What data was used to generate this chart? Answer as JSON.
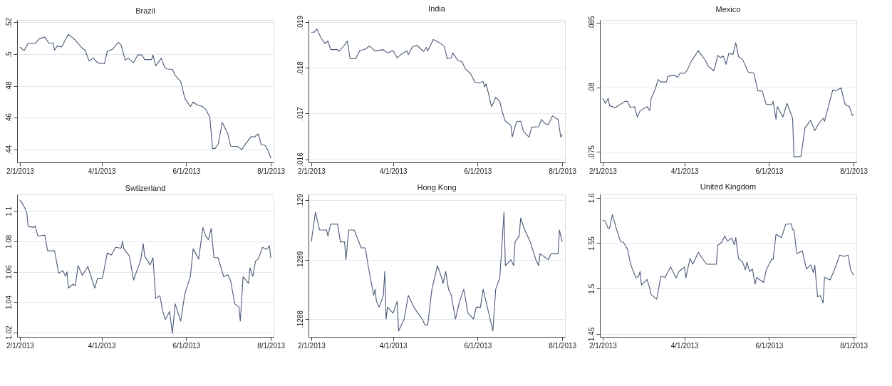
{
  "chart_data": [
    {
      "type": "line",
      "title": "Brazil",
      "color": "#4a5a78",
      "grid": "y",
      "xlim": [
        "2013-01-30",
        "2013-08-03"
      ],
      "xticks": [
        {
          "value": "2013-02-01",
          "label": "2/1/2013"
        },
        {
          "value": "2013-04-01",
          "label": "4/1/2013"
        },
        {
          "value": "2013-06-01",
          "label": "6/1/2013"
        },
        {
          "value": "2013-08-01",
          "label": "8/1/2013"
        }
      ],
      "ylim": [
        0.432,
        0.5215
      ],
      "yticks": [
        {
          "value": 0.44,
          "label": ".44"
        },
        {
          "value": 0.46,
          "label": ".46"
        },
        {
          "value": 0.48,
          "label": ".48"
        },
        {
          "value": 0.5,
          "label": ".5"
        },
        {
          "value": 0.52,
          "label": ".52"
        }
      ],
      "x": [
        "2013-02-01",
        "2013-02-04",
        "2013-02-07",
        "2013-02-12",
        "2013-02-15",
        "2013-02-19",
        "2013-02-22",
        "2013-02-25",
        "2013-02-26",
        "2013-02-28",
        "2013-03-03",
        "2013-03-08",
        "2013-03-12",
        "2013-03-18",
        "2013-03-20",
        "2013-03-23",
        "2013-03-26",
        "2013-03-29",
        "2013-04-03",
        "2013-04-05",
        "2013-04-09",
        "2013-04-13",
        "2013-04-15",
        "2013-04-18",
        "2013-04-20",
        "2013-04-24",
        "2013-04-27",
        "2013-04-30",
        "2013-05-02",
        "2013-05-07",
        "2013-05-08",
        "2013-05-10",
        "2013-05-14",
        "2013-05-16",
        "2013-05-18",
        "2013-05-22",
        "2013-05-24",
        "2013-05-28",
        "2013-05-31",
        "2013-06-04",
        "2013-06-06",
        "2013-06-09",
        "2013-06-13",
        "2013-06-15",
        "2013-06-18",
        "2013-06-20",
        "2013-06-22",
        "2013-06-24",
        "2013-06-27",
        "2013-07-01",
        "2013-07-03",
        "2013-07-08",
        "2013-07-11",
        "2013-07-14",
        "2013-07-18",
        "2013-07-20",
        "2013-07-23",
        "2013-07-25",
        "2013-07-28",
        "2013-07-30",
        "2013-08-01"
      ],
      "values": [
        0.5045,
        0.5022,
        0.5067,
        0.5067,
        0.5097,
        0.5107,
        0.5067,
        0.5071,
        0.5025,
        0.5051,
        0.5045,
        0.5124,
        0.5097,
        0.5038,
        0.5025,
        0.4957,
        0.4975,
        0.4946,
        0.4939,
        0.5018,
        0.5032,
        0.5074,
        0.5058,
        0.4962,
        0.4975,
        0.4946,
        0.4995,
        0.4995,
        0.4966,
        0.4966,
        0.4995,
        0.4926,
        0.4975,
        0.4926,
        0.4907,
        0.4904,
        0.4867,
        0.4828,
        0.4722,
        0.467,
        0.4699,
        0.468,
        0.467,
        0.4654,
        0.4604,
        0.4406,
        0.4409,
        0.4433,
        0.4571,
        0.4499,
        0.4422,
        0.442,
        0.44,
        0.4439,
        0.4483,
        0.4479,
        0.4499,
        0.4433,
        0.4426,
        0.4393,
        0.4347
      ]
    },
    {
      "type": "line",
      "title": "India",
      "color": "#4a5a78",
      "grid": "y",
      "xlim": [
        "2013-01-30",
        "2013-08-03"
      ],
      "xticks": [
        {
          "value": "2013-02-01",
          "label": "2/1/2013"
        },
        {
          "value": "2013-04-01",
          "label": "4/1/2013"
        },
        {
          "value": "2013-06-01",
          "label": "6/1/2013"
        },
        {
          "value": "2013-08-01",
          "label": "8/1/2013"
        }
      ],
      "ylim": [
        0.01593,
        0.01905
      ],
      "yticks": [
        {
          "value": 0.016,
          "label": ".016"
        },
        {
          "value": 0.017,
          "label": ".017"
        },
        {
          "value": 0.018,
          "label": ".018"
        },
        {
          "value": 0.019,
          "label": ".019"
        }
      ],
      "x": [
        "2013-02-01",
        "2013-02-03",
        "2013-02-05",
        "2013-02-08",
        "2013-02-11",
        "2013-02-13",
        "2013-02-15",
        "2013-02-20",
        "2013-02-21",
        "2013-02-25",
        "2013-02-27",
        "2013-03-01",
        "2013-03-05",
        "2013-03-08",
        "2013-03-12",
        "2013-03-15",
        "2013-03-19",
        "2013-03-25",
        "2013-03-28",
        "2013-04-01",
        "2013-04-04",
        "2013-04-07",
        "2013-04-11",
        "2013-04-12",
        "2013-04-15",
        "2013-04-18",
        "2013-04-23",
        "2013-04-25",
        "2013-04-26",
        "2013-04-30",
        "2013-05-04",
        "2013-05-08",
        "2013-05-10",
        "2013-05-13",
        "2013-05-14",
        "2013-05-16",
        "2013-05-18",
        "2013-05-21",
        "2013-05-23",
        "2013-05-27",
        "2013-05-30",
        "2013-06-02",
        "2013-06-05",
        "2013-06-06",
        "2013-06-07",
        "2013-06-09",
        "2013-06-11",
        "2013-06-13",
        "2013-06-14",
        "2013-06-17",
        "2013-06-19",
        "2013-06-21",
        "2013-06-25",
        "2013-06-26",
        "2013-06-29",
        "2013-07-02",
        "2013-07-04",
        "2013-07-08",
        "2013-07-10",
        "2013-07-15",
        "2013-07-17",
        "2013-07-20",
        "2013-07-22",
        "2013-07-25",
        "2013-07-29",
        "2013-07-31",
        "2013-08-01"
      ],
      "values": [
        0.01878,
        0.01878,
        0.01885,
        0.01866,
        0.01853,
        0.01859,
        0.0184,
        0.0184,
        0.01836,
        0.0185,
        0.01859,
        0.0182,
        0.0182,
        0.01838,
        0.01841,
        0.01848,
        0.01837,
        0.0184,
        0.01833,
        0.01838,
        0.01822,
        0.0183,
        0.01837,
        0.01829,
        0.01846,
        0.0185,
        0.01836,
        0.01845,
        0.01837,
        0.01862,
        0.01856,
        0.01847,
        0.0182,
        0.01822,
        0.01833,
        0.01824,
        0.01816,
        0.01813,
        0.01798,
        0.01787,
        0.01769,
        0.01767,
        0.0177,
        0.01758,
        0.01765,
        0.01742,
        0.01715,
        0.01727,
        0.01736,
        0.01726,
        0.01701,
        0.01683,
        0.01674,
        0.01649,
        0.01682,
        0.01683,
        0.01662,
        0.01648,
        0.0167,
        0.01671,
        0.01687,
        0.01677,
        0.01676,
        0.01695,
        0.01687,
        0.01648,
        0.01654
      ]
    },
    {
      "type": "line",
      "title": "Mexico",
      "color": "#4a5a78",
      "grid": "y",
      "xlim": [
        "2013-01-30",
        "2013-08-03"
      ],
      "xticks": [
        {
          "value": "2013-02-01",
          "label": "2/1/2013"
        },
        {
          "value": "2013-04-01",
          "label": "4/1/2013"
        },
        {
          "value": "2013-06-01",
          "label": "6/1/2013"
        },
        {
          "value": "2013-08-01",
          "label": "8/1/2013"
        }
      ],
      "ylim": [
        0.0742,
        0.0852
      ],
      "yticks": [
        {
          "value": 0.075,
          "label": ".075"
        },
        {
          "value": 0.08,
          "label": ".08"
        },
        {
          "value": 0.085,
          "label": ".085"
        }
      ],
      "x": [
        "2013-02-01",
        "2013-02-03",
        "2013-02-05",
        "2013-02-06",
        "2013-02-10",
        "2013-02-17",
        "2013-02-19",
        "2013-02-21",
        "2013-02-24",
        "2013-02-26",
        "2013-02-28",
        "2013-03-05",
        "2013-03-07",
        "2013-03-08",
        "2013-03-11",
        "2013-03-13",
        "2013-03-15",
        "2013-03-19",
        "2013-03-20",
        "2013-03-25",
        "2013-03-27",
        "2013-03-29",
        "2013-04-01",
        "2013-04-03",
        "2013-04-06",
        "2013-04-11",
        "2013-04-16",
        "2013-04-18",
        "2013-04-22",
        "2013-04-23",
        "2013-04-25",
        "2013-04-27",
        "2013-04-29",
        "2013-05-01",
        "2013-05-03",
        "2013-05-06",
        "2013-05-08",
        "2013-05-10",
        "2013-05-13",
        "2013-05-17",
        "2013-05-21",
        "2013-05-24",
        "2013-05-27",
        "2013-05-30",
        "2013-06-03",
        "2013-06-04",
        "2013-06-06",
        "2013-06-07",
        "2013-06-11",
        "2013-06-14",
        "2013-06-18",
        "2013-06-19",
        "2013-06-24",
        "2013-06-27",
        "2013-07-01",
        "2013-07-04",
        "2013-07-07",
        "2013-07-10",
        "2013-07-11",
        "2013-07-17",
        "2013-07-19",
        "2013-07-23",
        "2013-07-25",
        "2013-07-26",
        "2013-07-29",
        "2013-07-31",
        "2013-08-01"
      ],
      "values": [
        0.07915,
        0.07875,
        0.07915,
        0.07858,
        0.07842,
        0.07891,
        0.07891,
        0.07842,
        0.0785,
        0.0777,
        0.07818,
        0.0785,
        0.07821,
        0.07915,
        0.07988,
        0.0806,
        0.08041,
        0.08041,
        0.08085,
        0.08093,
        0.08077,
        0.08112,
        0.08106,
        0.08133,
        0.08203,
        0.08283,
        0.08209,
        0.08165,
        0.08128,
        0.08157,
        0.08246,
        0.0823,
        0.08241,
        0.08177,
        0.08262,
        0.08254,
        0.08343,
        0.08238,
        0.08214,
        0.08117,
        0.08109,
        0.07972,
        0.07972,
        0.07867,
        0.07867,
        0.07891,
        0.07753,
        0.0785,
        0.0777,
        0.07875,
        0.07761,
        0.07462,
        0.07466,
        0.07689,
        0.07745,
        0.07665,
        0.07721,
        0.07761,
        0.07737,
        0.0798,
        0.07972,
        0.07996,
        0.07899,
        0.07867,
        0.0785,
        0.07782,
        0.07794
      ]
    },
    {
      "type": "line",
      "title": "Swtizerland",
      "color": "#4a5a78",
      "grid": "y",
      "xlim": [
        "2013-01-30",
        "2013-08-03"
      ],
      "xticks": [
        {
          "value": "2013-02-01",
          "label": "2/1/2013"
        },
        {
          "value": "2013-04-01",
          "label": "4/1/2013"
        },
        {
          "value": "2013-06-01",
          "label": "6/1/2013"
        },
        {
          "value": "2013-08-01",
          "label": "8/1/2013"
        }
      ],
      "ylim": [
        1.017,
        1.111
      ],
      "yticks": [
        1.02,
        1.04,
        1.06,
        1.08,
        1.1
      ],
      "x": [
        "2013-02-01",
        "2013-02-03",
        "2013-02-05",
        "2013-02-06",
        "2013-02-07",
        "2013-02-11",
        "2013-02-12",
        "2013-02-14",
        "2013-02-19",
        "2013-02-21",
        "2013-02-26",
        "2013-03-01",
        "2013-03-04",
        "2013-03-06",
        "2013-03-07",
        "2013-03-08",
        "2013-03-11",
        "2013-03-13",
        "2013-03-15",
        "2013-03-18",
        "2013-03-22",
        "2013-03-27",
        "2013-03-29",
        "2013-04-01",
        "2013-04-02",
        "2013-04-05",
        "2013-04-08",
        "2013-04-11",
        "2013-04-15",
        "2013-04-16",
        "2013-04-17",
        "2013-04-21",
        "2013-04-24",
        "2013-04-27",
        "2013-04-29",
        "2013-05-01",
        "2013-05-02",
        "2013-05-06",
        "2013-05-08",
        "2013-05-10",
        "2013-05-13",
        "2013-05-15",
        "2013-05-17",
        "2013-05-20",
        "2013-05-22",
        "2013-05-24",
        "2013-05-28",
        "2013-05-31",
        "2013-06-04",
        "2013-06-06",
        "2013-06-10",
        "2013-06-13",
        "2013-06-15",
        "2013-06-17",
        "2013-06-19",
        "2013-06-21",
        "2013-06-24",
        "2013-06-28",
        "2013-07-01",
        "2013-07-03",
        "2013-07-06",
        "2013-07-09",
        "2013-07-10",
        "2013-07-12",
        "2013-07-16",
        "2013-07-17",
        "2013-07-19",
        "2013-07-21",
        "2013-07-23",
        "2013-07-26",
        "2013-07-29",
        "2013-07-31",
        "2013-08-01"
      ],
      "values": [
        1.1074,
        1.1047,
        1.1013,
        1.0987,
        1.0899,
        1.0892,
        1.0903,
        1.0836,
        1.0841,
        1.0738,
        1.0738,
        1.059,
        1.0607,
        1.057,
        1.0599,
        1.0492,
        1.0516,
        1.0509,
        1.064,
        1.0576,
        1.0634,
        1.0492,
        1.0556,
        1.0553,
        1.0576,
        1.0724,
        1.0711,
        1.0761,
        1.0755,
        1.0801,
        1.0751,
        1.0704,
        1.0545,
        1.0623,
        1.067,
        1.0785,
        1.0704,
        1.0644,
        1.0693,
        1.0424,
        1.0442,
        1.0341,
        1.0284,
        1.0338,
        1.0193,
        1.0388,
        1.0274,
        1.0455,
        1.057,
        1.0751,
        1.0684,
        1.0892,
        1.0836,
        1.0812,
        1.0886,
        1.0693,
        1.0693,
        1.0567,
        1.058,
        1.054,
        1.0388,
        1.0368,
        1.0274,
        1.0567,
        1.0523,
        1.0626,
        1.057,
        1.067,
        1.0684,
        1.0761,
        1.0747,
        1.0771,
        1.0691
      ]
    },
    {
      "type": "line",
      "title": "Hong Kong",
      "color": "#4a5a78",
      "grid": "y",
      "xlim": [
        "2013-01-30",
        "2013-08-03"
      ],
      "xticks": [
        {
          "value": "2013-02-01",
          "label": "2/1/2013"
        },
        {
          "value": "2013-04-01",
          "label": "4/1/2013"
        },
        {
          "value": "2013-06-01",
          "label": "6/1/2013"
        },
        {
          "value": "2013-08-01",
          "label": "8/1/2013"
        }
      ],
      "ylim": [
        0.12877,
        0.12901
      ],
      "yticks": [
        {
          "value": 0.1288,
          "label": ".1288"
        },
        {
          "value": 0.1289,
          "label": ".1289"
        },
        {
          "value": 0.129,
          "label": ".129"
        }
      ],
      "x": [
        "2013-02-01",
        "2013-02-04",
        "2013-02-06",
        "2013-02-07",
        "2013-02-09",
        "2013-02-12",
        "2013-02-13",
        "2013-02-15",
        "2013-02-20",
        "2013-02-22",
        "2013-02-25",
        "2013-02-26",
        "2013-02-28",
        "2013-03-04",
        "2013-03-09",
        "2013-03-12",
        "2013-03-14",
        "2013-03-18",
        "2013-03-19",
        "2013-03-20",
        "2013-03-22",
        "2013-03-25",
        "2013-03-26",
        "2013-03-27",
        "2013-03-28",
        "2013-04-01",
        "2013-04-04",
        "2013-04-05",
        "2013-04-09",
        "2013-04-12",
        "2013-04-16",
        "2013-04-19",
        "2013-04-22",
        "2013-04-24",
        "2013-04-26",
        "2013-04-29",
        "2013-05-03",
        "2013-05-06",
        "2013-05-07",
        "2013-05-09",
        "2013-05-11",
        "2013-05-13",
        "2013-05-16",
        "2013-05-19",
        "2013-05-22",
        "2013-05-25",
        "2013-05-29",
        "2013-05-31",
        "2013-06-03",
        "2013-06-05",
        "2013-06-08",
        "2013-06-12",
        "2013-06-14",
        "2013-06-17",
        "2013-06-20",
        "2013-06-21",
        "2013-06-25",
        "2013-06-27",
        "2013-06-28",
        "2013-07-01",
        "2013-07-02",
        "2013-07-05",
        "2013-07-09",
        "2013-07-13",
        "2013-07-15",
        "2013-07-16",
        "2013-07-22",
        "2013-07-24",
        "2013-07-26",
        "2013-07-29",
        "2013-07-30",
        "2013-08-01"
      ],
      "values": [
        0.12893,
        0.12898,
        0.12896,
        0.12895,
        0.12895,
        0.12895,
        0.12894,
        0.12896,
        0.12896,
        0.12893,
        0.12893,
        0.1289,
        0.12895,
        0.12895,
        0.12892,
        0.12892,
        0.12889,
        0.12884,
        0.12885,
        0.12883,
        0.12882,
        0.12884,
        0.12888,
        0.1288,
        0.12882,
        0.12881,
        0.12883,
        0.12878,
        0.1288,
        0.12884,
        0.12882,
        0.12881,
        0.1288,
        0.12879,
        0.12879,
        0.12885,
        0.12889,
        0.12887,
        0.12886,
        0.12888,
        0.12885,
        0.12884,
        0.1288,
        0.12883,
        0.12885,
        0.12881,
        0.1288,
        0.12882,
        0.12882,
        0.12885,
        0.12882,
        0.12878,
        0.12885,
        0.12887,
        0.12898,
        0.12889,
        0.1289,
        0.12889,
        0.12893,
        0.12894,
        0.12897,
        0.12895,
        0.12893,
        0.1289,
        0.12889,
        0.12891,
        0.1289,
        0.12891,
        0.12891,
        0.12891,
        0.12895,
        0.12893
      ]
    },
    {
      "type": "line",
      "title": "United Kingdom",
      "color": "#4a5a78",
      "grid": "y",
      "xlim": [
        "2013-01-30",
        "2013-08-03"
      ],
      "xticks": [
        {
          "value": "2013-02-01",
          "label": "2/1/2013"
        },
        {
          "value": "2013-04-01",
          "label": "4/1/2013"
        },
        {
          "value": "2013-06-01",
          "label": "6/1/2013"
        },
        {
          "value": "2013-08-01",
          "label": "8/1/2013"
        }
      ],
      "ylim": [
        1.4468,
        1.6037
      ],
      "yticks": [
        1.45,
        1.5,
        1.55,
        1.6
      ],
      "x": [
        "2013-02-01",
        "2013-02-03",
        "2013-02-05",
        "2013-02-06",
        "2013-02-08",
        "2013-02-11",
        "2013-02-14",
        "2013-02-16",
        "2013-02-19",
        "2013-02-21",
        "2013-02-22",
        "2013-02-25",
        "2013-02-27",
        "2013-02-28",
        "2013-03-01",
        "2013-03-05",
        "2013-03-07",
        "2013-03-08",
        "2013-03-12",
        "2013-03-15",
        "2013-03-18",
        "2013-03-22",
        "2013-03-26",
        "2013-03-28",
        "2013-04-01",
        "2013-04-02",
        "2013-04-05",
        "2013-04-07",
        "2013-04-11",
        "2013-04-14",
        "2013-04-17",
        "2013-04-24",
        "2013-04-25",
        "2013-04-28",
        "2013-04-30",
        "2013-05-02",
        "2013-05-05",
        "2013-05-07",
        "2013-05-08",
        "2013-05-10",
        "2013-05-13",
        "2013-05-15",
        "2013-05-16",
        "2013-05-18",
        "2013-05-20",
        "2013-05-22",
        "2013-05-23",
        "2013-05-28",
        "2013-05-30",
        "2013-06-03",
        "2013-06-04",
        "2013-06-06",
        "2013-06-10",
        "2013-06-13",
        "2013-06-17",
        "2013-06-18",
        "2013-06-19",
        "2013-06-21",
        "2013-06-25",
        "2013-06-28",
        "2013-07-01",
        "2013-07-03",
        "2013-07-04",
        "2013-07-06",
        "2013-07-08",
        "2013-07-10",
        "2013-07-11",
        "2013-07-15",
        "2013-07-18",
        "2013-07-22",
        "2013-07-25",
        "2013-07-28",
        "2013-07-30",
        "2013-08-01"
      ],
      "values": [
        1.5753,
        1.5742,
        1.5661,
        1.5668,
        1.5815,
        1.5654,
        1.5515,
        1.5511,
        1.543,
        1.528,
        1.5234,
        1.5118,
        1.5137,
        1.5188,
        1.5038,
        1.51,
        1.5003,
        1.4934,
        1.4883,
        1.5137,
        1.5123,
        1.5238,
        1.5118,
        1.5188,
        1.5238,
        1.5118,
        1.5331,
        1.5268,
        1.54,
        1.5331,
        1.5268,
        1.5268,
        1.5476,
        1.5511,
        1.558,
        1.5522,
        1.5557,
        1.5483,
        1.5561,
        1.5331,
        1.5291,
        1.5206,
        1.5291,
        1.5188,
        1.5215,
        1.5049,
        1.5123,
        1.5068,
        1.5206,
        1.5326,
        1.5321,
        1.5598,
        1.5561,
        1.5707,
        1.5714,
        1.5649,
        1.5645,
        1.5384,
        1.5414,
        1.5215,
        1.5261,
        1.5176,
        1.5257,
        1.4911,
        1.4922,
        1.4841,
        1.5123,
        1.5095,
        1.5199,
        1.5368,
        1.5354,
        1.5368,
        1.5199,
        1.5146
      ]
    }
  ]
}
